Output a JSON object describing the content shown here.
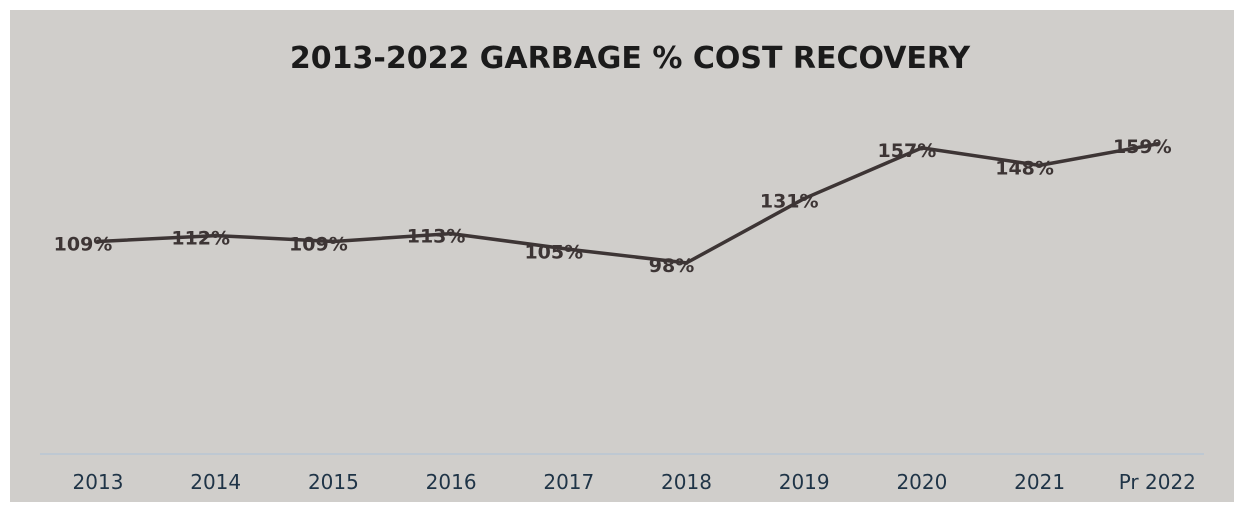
{
  "chart_data": {
    "type": "line",
    "title": "2013-2022 GARBAGE % COST RECOVERY",
    "categories": [
      "2013",
      "2014",
      "2015",
      "2016",
      "2017",
      "2018",
      "2019",
      "2020",
      "2021",
      "Pr 2022"
    ],
    "series": [
      {
        "values": [
          109,
          112,
          109,
          113,
          105,
          98,
          131,
          157,
          148,
          159
        ],
        "data_labels": [
          "109%",
          "112%",
          "109%",
          "113%",
          "105%",
          "98%",
          "131%",
          "157%",
          "148%",
          "159%"
        ]
      }
    ],
    "xlabel": "",
    "ylabel": "",
    "ylim": [
      0,
      200
    ],
    "grid": false,
    "legend": "none",
    "colors": {
      "background": "#d0cecb",
      "line": "#3d3535",
      "axis": "#b8c6d4",
      "tick_text": "#1f3447"
    }
  }
}
